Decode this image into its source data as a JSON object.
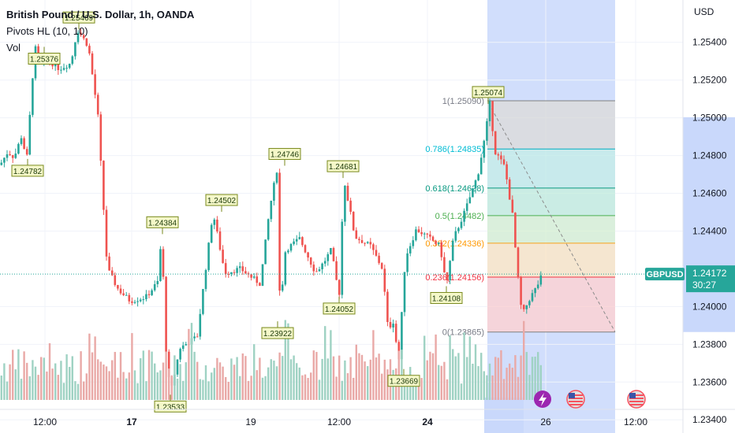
{
  "legend": {
    "title": "British Pound / U.S. Dollar, 1h, OANDA",
    "indicator_pivots": "Pivots HL (10, 10)",
    "indicator_vol": "Vol"
  },
  "price_axis": {
    "currency": "USD"
  },
  "symbol_tag": {
    "symbol": "GBPUSD",
    "price": "1.24172",
    "countdown": "30:27"
  },
  "colors": {
    "up": "#26a69a",
    "down": "#ef5350",
    "vol_up": "#9fd2c3",
    "vol_down": "#e9a9a7",
    "pivot_bg": "#f5f8c9",
    "pivot_border": "#7a8a1e",
    "pivot_text": "#1d3a0a",
    "highlight": "#c9d8fb",
    "tag": "#26a69a"
  },
  "chart_data": {
    "type": "candlestick",
    "title": "British Pound / U.S. Dollar, 1h, OANDA",
    "ylim": [
      1.2333,
      1.2562
    ],
    "y_ticks": [
      "1.25400",
      "1.25200",
      "1.25000",
      "1.24800",
      "1.24600",
      "1.24400",
      "1.24000",
      "1.23800",
      "1.23600",
      "1.23400"
    ],
    "x_ticks": [
      "12:00",
      "17",
      "19",
      "12:00",
      "24",
      "26",
      "12:00"
    ],
    "last_price": 1.24172,
    "pivots_high": [
      "1.25469",
      "1.24384",
      "1.24502",
      "1.24746",
      "1.24681",
      "1.25074"
    ],
    "pivots_low": [
      "1.25376",
      "1.24782",
      "1.23533",
      "1.23922",
      "1.24052",
      "1.23669",
      "1.24108"
    ],
    "fib_levels": [
      {
        "label": "1(1.25090)",
        "value": 1.2509
      },
      {
        "label": "0.786(1.24835)",
        "value": 1.24835
      },
      {
        "label": "0.618(1.24628)",
        "value": 1.24628
      },
      {
        "label": "0.5(1.24482)",
        "value": 1.24482
      },
      {
        "label": "0.382(1.24336)",
        "value": 1.24336
      },
      {
        "label": "0.236(1.24156)",
        "value": 1.24156
      },
      {
        "label": "0(1.23865)",
        "value": 1.23865
      }
    ]
  }
}
